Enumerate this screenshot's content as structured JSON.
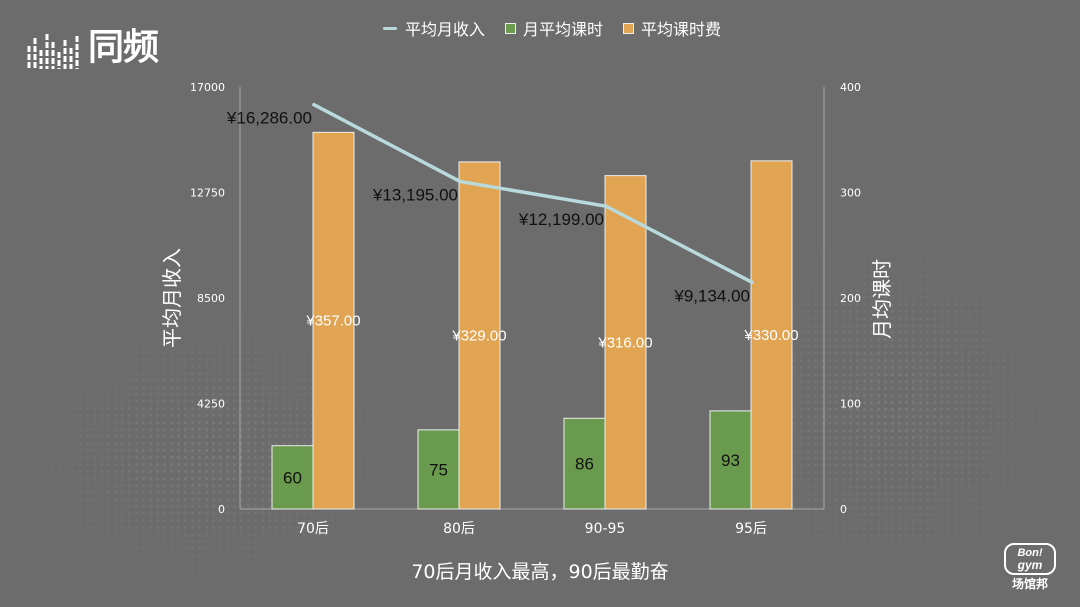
{
  "brand": {
    "logo_text": "同频",
    "logo_icon": "barcode-bars-icon",
    "partner_logo": {
      "line1": "Bon!",
      "line2": "gym",
      "line3": "场馆邦"
    }
  },
  "caption": "70后月收入最高，90后最勤奋",
  "colors": {
    "background": "#6c6c6c",
    "text": "#ffffff",
    "axis": "#a8a8a8",
    "bar_outline": "#eeeeee"
  },
  "chart_data": {
    "type": "bar",
    "categories": [
      "70后",
      "80后",
      "90-95",
      "95后"
    ],
    "series": [
      {
        "name": "平均月收入",
        "type": "line",
        "axis": "left",
        "color": "#b9dadd",
        "label_color": "#111111",
        "values": [
          16286,
          13195,
          12199,
          9134
        ],
        "data_labels": [
          "¥16,286.00",
          "¥13,195.00",
          "¥12,199.00",
          "¥9,134.00"
        ]
      },
      {
        "name": "月平均课时",
        "type": "bar",
        "axis": "right",
        "color": "#6a9a4e",
        "label_color": "#111111",
        "values": [
          60,
          75,
          86,
          93
        ],
        "data_labels": [
          "60",
          "75",
          "86",
          "93"
        ]
      },
      {
        "name": "平均课时费",
        "type": "bar",
        "axis": "right",
        "color": "#e0a453",
        "label_color": "#ffffff",
        "values": [
          357,
          329,
          316,
          330
        ],
        "data_labels": [
          "¥357.00",
          "¥329.00",
          "¥316.00",
          "¥330.00"
        ]
      }
    ],
    "ylabel": "平均月收入",
    "y2label": "月均课时",
    "ylim": [
      0,
      17000
    ],
    "yticks": [
      0,
      4250,
      8500,
      12750,
      17000
    ],
    "y2lim": [
      0,
      400
    ],
    "y2ticks": [
      0,
      100,
      200,
      300,
      400
    ],
    "legend": "top",
    "grid": false
  }
}
